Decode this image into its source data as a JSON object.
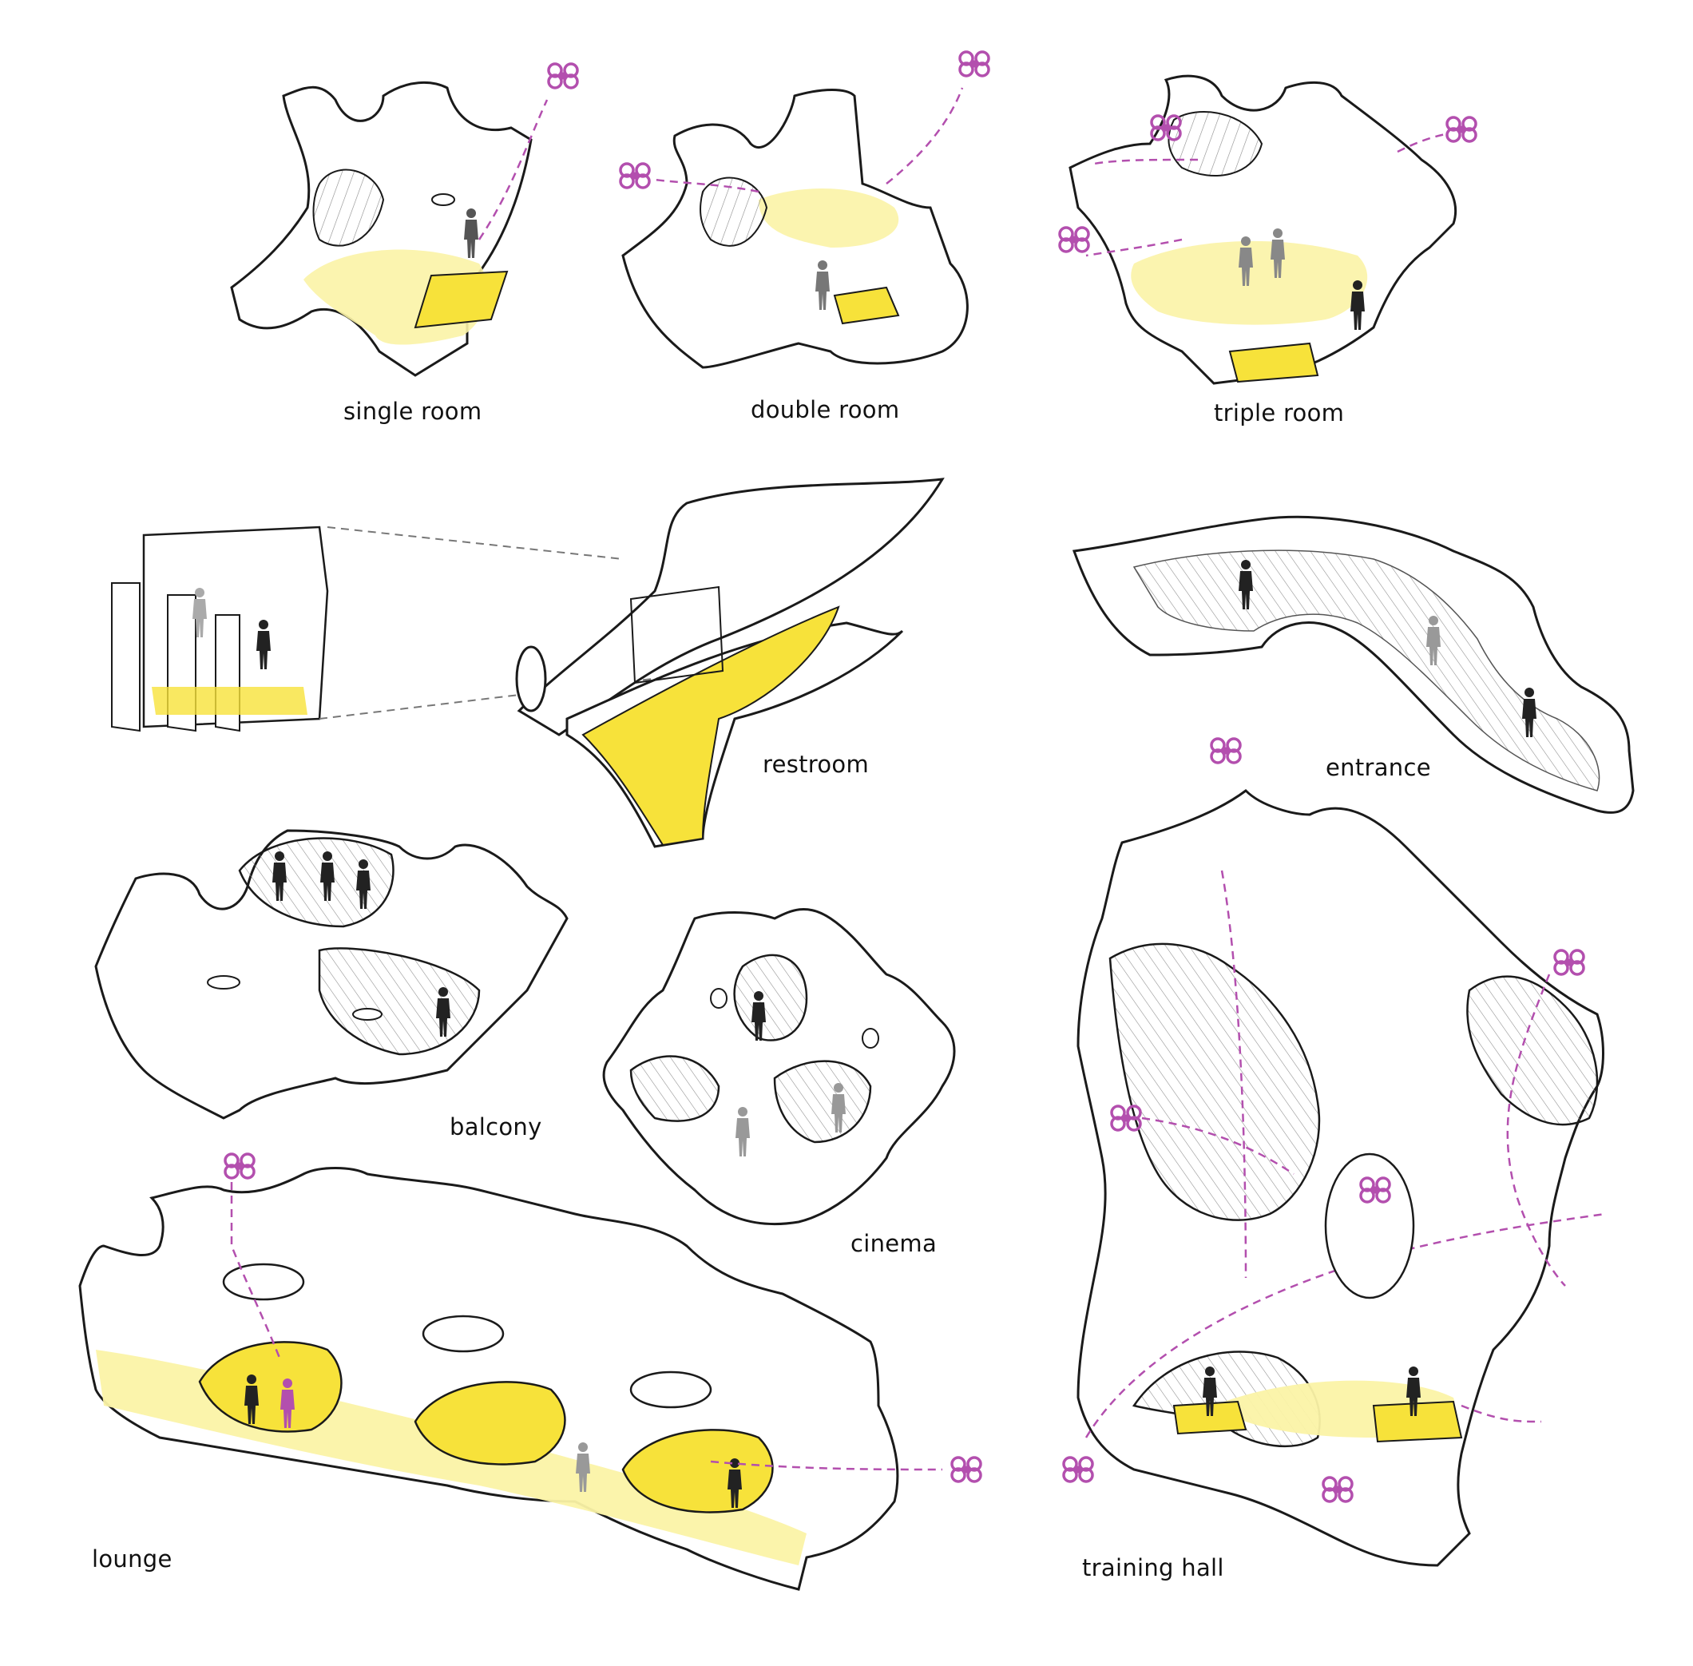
{
  "labels": {
    "single_room": "single room",
    "double_room": "double room",
    "triple_room": "triple room",
    "restroom": "restroom",
    "entrance": "entrance",
    "balcony": "balcony",
    "cinema": "cinema",
    "lounge": "lounge",
    "training_hall": "training hall"
  },
  "colors": {
    "line": "#1a1a1a",
    "hatch": "#8a8a8a",
    "yellow_soft": "#fbf3a6",
    "yellow_floor": "#f7e23a",
    "drone": "#b34fae",
    "path": "#b34fae",
    "figure_dark": "#222222",
    "figure_grey": "#8c8c8c"
  },
  "icons": {
    "drone": "quadcopter-drone-icon",
    "figure": "person-figure-icon"
  }
}
